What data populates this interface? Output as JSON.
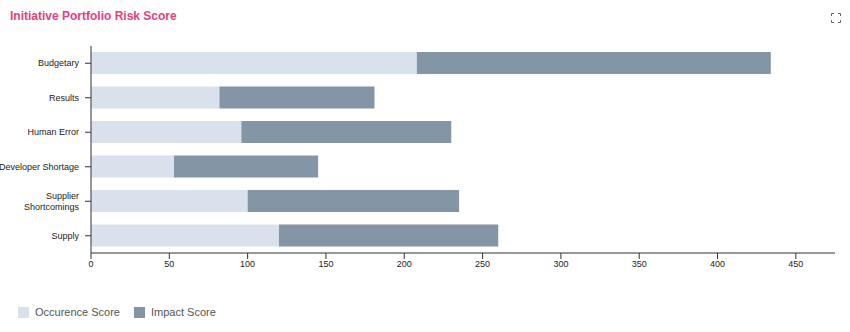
{
  "chart_data": {
    "type": "bar",
    "title": "Initiative Portfolio Risk Score",
    "orientation": "horizontal",
    "stacked": true,
    "categories": [
      "Budgetary",
      "Results",
      "Human Error",
      "Developer Shortage",
      "Supplier Shortcomings",
      "Supply"
    ],
    "series": [
      {
        "name": "Occurence Score",
        "color": "#d9e2ec",
        "values": [
          208,
          82,
          96,
          53,
          100,
          120
        ]
      },
      {
        "name": "Impact Score",
        "color": "#8495a6",
        "values": [
          226,
          99,
          134,
          92,
          135,
          140
        ]
      }
    ],
    "xlim": [
      0,
      475
    ],
    "xticks": [
      0,
      50,
      100,
      150,
      200,
      250,
      300,
      350,
      400,
      450
    ],
    "legend": "bottom left"
  }
}
